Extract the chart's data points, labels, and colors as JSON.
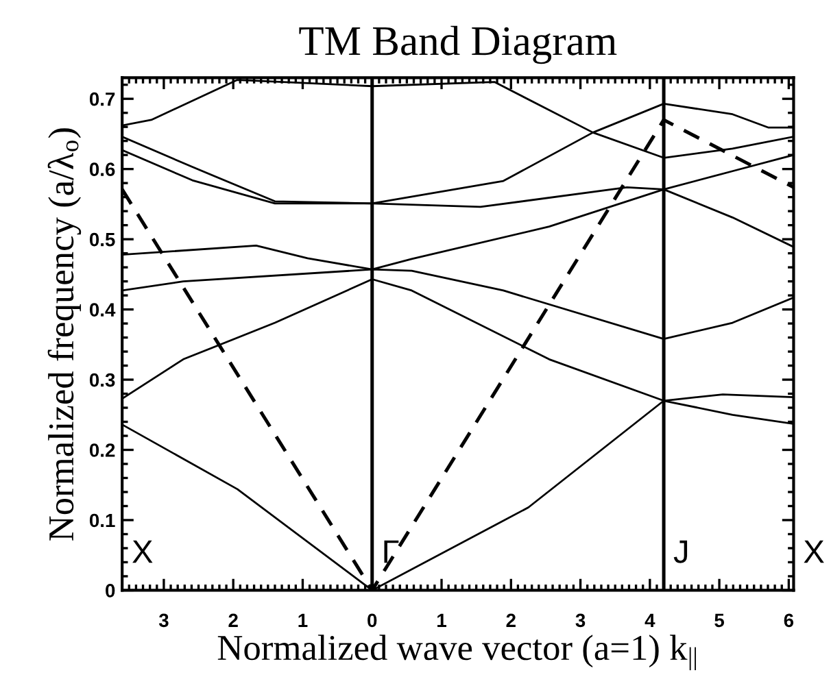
{
  "chart_data": {
    "type": "line",
    "title": "TM Band Diagram",
    "xlabel": "Normalized wave vector (a=1) k$_{||}$",
    "ylabel": "Normalized frequency (a/λ$_{o}$)",
    "xlim": [
      -3.6,
      6.07
    ],
    "ylim": [
      0,
      0.73
    ],
    "xticks": [
      {
        "value": -3,
        "label": "3"
      },
      {
        "value": -2,
        "label": "2"
      },
      {
        "value": -1,
        "label": "1"
      },
      0,
      1,
      2,
      3,
      4,
      5,
      6
    ],
    "yticks": [
      0,
      0.1,
      0.2,
      0.3,
      0.4,
      0.5,
      0.6,
      0.7
    ],
    "grid": false,
    "legend": false,
    "marker": "none",
    "line_style": "solid",
    "series": [
      {
        "color": "#000000",
        "x": [
          -3.6,
          -1.94,
          0,
          2.25,
          4.2,
          5.19,
          6.07
        ],
        "values": [
          0.236,
          0.144,
          0,
          0.118,
          0.27,
          0.25,
          0.237
        ]
      },
      {
        "color": "#000000",
        "x": [
          -3.6,
          -2.72,
          -1.4,
          0,
          0.57,
          2.55,
          4.2,
          5.05,
          6.07
        ],
        "values": [
          0.273,
          0.329,
          0.381,
          0.443,
          0.427,
          0.329,
          0.27,
          0.279,
          0.275
        ]
      },
      {
        "color": "#000000",
        "x": [
          -3.6,
          -2.72,
          0,
          0.57,
          1.89,
          4.2,
          5.19,
          6.07
        ],
        "values": [
          0.427,
          0.44,
          0.457,
          0.455,
          0.427,
          0.358,
          0.381,
          0.417
        ]
      },
      {
        "color": "#000000",
        "x": [
          -3.6,
          -1.67,
          -0.93,
          0,
          0.57,
          2.55,
          4.2,
          5.19,
          6.07
        ],
        "values": [
          0.478,
          0.491,
          0.473,
          0.457,
          0.472,
          0.518,
          0.571,
          0.531,
          0.489
        ]
      },
      {
        "color": "#000000",
        "x": [
          -3.6,
          -2.59,
          -1.4,
          0,
          1.56,
          3.67,
          4.2,
          5.19,
          6.07
        ],
        "values": [
          0.627,
          0.584,
          0.551,
          0.551,
          0.546,
          0.574,
          0.571,
          0.597,
          0.62
        ]
      },
      {
        "color": "#000000",
        "x": [
          -3.6,
          -2.59,
          -1.4,
          0,
          1.89,
          3.18,
          4.2,
          5.19,
          5.71,
          6.07
        ],
        "values": [
          0.646,
          0.603,
          0.554,
          0.551,
          0.583,
          0.652,
          0.693,
          0.678,
          0.659,
          0.659
        ]
      },
      {
        "color": "#000000",
        "x": [
          -3.6,
          -3.18,
          -1.94,
          0,
          1.76,
          3.18,
          4.2,
          5.19,
          6.07
        ],
        "values": [
          0.662,
          0.67,
          0.727,
          0.718,
          0.724,
          0.652,
          0.616,
          0.629,
          0.646
        ]
      },
      {
        "color": "#000000",
        "line_style": "dashed",
        "x": [
          -3.6,
          0,
          4.2,
          6.07
        ],
        "values": [
          0.571,
          0,
          0.67,
          0.574
        ]
      }
    ],
    "ref_lines": [
      {
        "axis": "x",
        "value": 0,
        "color": "#000000",
        "label": "Γ"
      },
      {
        "axis": "x",
        "value": 4.2,
        "color": "#000000",
        "label": "J"
      }
    ],
    "annotations": [
      "X",
      "X"
    ]
  }
}
